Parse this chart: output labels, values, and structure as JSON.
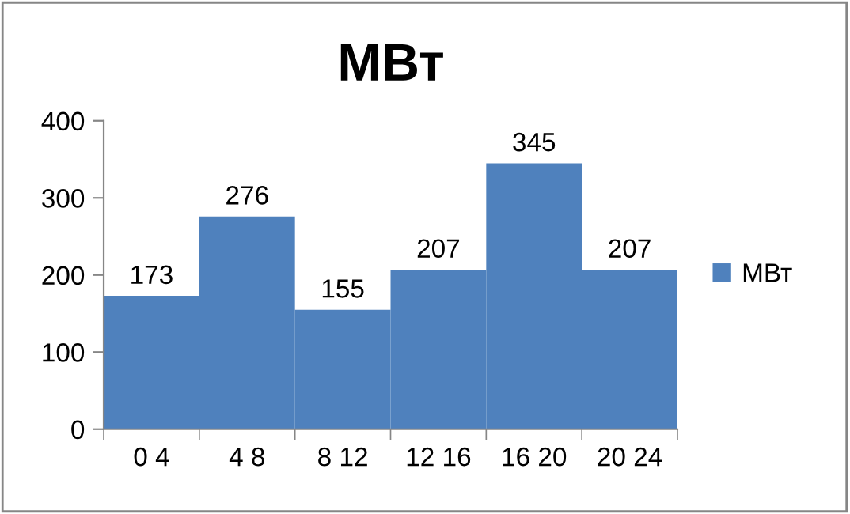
{
  "chart_data": {
    "type": "bar",
    "title": "МВт",
    "categories": [
      "0 4",
      "4 8",
      "8 12",
      "12 16",
      "16 20",
      "20 24"
    ],
    "series": [
      {
        "name": "МВт",
        "color": "#4f81bd",
        "values": [
          173,
          276,
          155,
          207,
          345,
          207
        ]
      }
    ],
    "ylim": [
      0,
      400
    ],
    "yticks": [
      0,
      100,
      200,
      300,
      400
    ],
    "grid": false,
    "legend": "right",
    "data_labels": true
  }
}
